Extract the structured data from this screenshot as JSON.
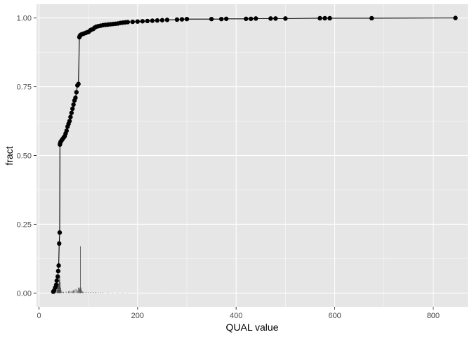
{
  "chart_data": {
    "type": "line",
    "xlabel": "QUAL value",
    "ylabel": "fract",
    "xlim": [
      -5,
      870
    ],
    "ylim": [
      -0.05,
      1.05
    ],
    "x_ticks": [
      0,
      200,
      400,
      600,
      800
    ],
    "y_ticks": [
      0.0,
      0.25,
      0.5,
      0.75,
      1.0
    ],
    "x_tick_labels": [
      "0",
      "200",
      "400",
      "600",
      "800"
    ],
    "y_tick_labels": [
      "0.00",
      "0.25",
      "0.50",
      "0.75",
      "1.00"
    ],
    "grid": true,
    "colors": {
      "panel_background": "#e6e6e6",
      "grid_major": "#ffffff",
      "line": "#000000",
      "point": "#000000",
      "histogram": "#444444",
      "tick_label": "#4d4d4d"
    },
    "ecdf_series": {
      "x": [
        29,
        31,
        33,
        35,
        36,
        38,
        39,
        40,
        41,
        42,
        42.5,
        43,
        44,
        46,
        48,
        50,
        52,
        54,
        56,
        58,
        60,
        62,
        64,
        66,
        68,
        70,
        72,
        74,
        76,
        78,
        80,
        82,
        83,
        84,
        84.5,
        86,
        89,
        92,
        95,
        98,
        101,
        104,
        107,
        110,
        113,
        116,
        120,
        125,
        130,
        135,
        140,
        145,
        150,
        155,
        160,
        165,
        170,
        175,
        180,
        190,
        200,
        210,
        220,
        230,
        240,
        250,
        260,
        280,
        290,
        300,
        350,
        370,
        380,
        420,
        430,
        440,
        470,
        480,
        500,
        570,
        580,
        590,
        675,
        845
      ],
      "y": [
        0.005,
        0.01,
        0.02,
        0.03,
        0.045,
        0.06,
        0.08,
        0.1,
        0.18,
        0.22,
        0.54,
        0.545,
        0.55,
        0.555,
        0.56,
        0.565,
        0.57,
        0.58,
        0.59,
        0.605,
        0.615,
        0.625,
        0.64,
        0.655,
        0.67,
        0.685,
        0.7,
        0.71,
        0.73,
        0.755,
        0.76,
        0.93,
        0.935,
        0.937,
        0.938,
        0.94,
        0.942,
        0.944,
        0.946,
        0.948,
        0.95,
        0.955,
        0.958,
        0.96,
        0.965,
        0.968,
        0.97,
        0.972,
        0.974,
        0.975,
        0.976,
        0.977,
        0.978,
        0.979,
        0.98,
        0.982,
        0.983,
        0.984,
        0.985,
        0.986,
        0.987,
        0.988,
        0.989,
        0.99,
        0.991,
        0.992,
        0.993,
        0.994,
        0.995,
        0.996,
        0.996,
        0.996,
        0.997,
        0.997,
        0.997,
        0.998,
        0.998,
        0.998,
        0.998,
        0.999,
        0.999,
        0.999,
        0.999,
        1.0
      ]
    },
    "histogram_series": {
      "x": [
        29,
        31,
        33,
        35,
        37,
        38,
        39,
        40,
        41,
        42,
        43,
        44,
        45,
        47,
        50,
        55,
        60,
        62,
        65,
        68,
        70,
        72,
        75,
        78,
        80,
        82,
        83,
        84,
        85,
        86,
        88,
        90,
        95,
        100,
        105,
        110,
        115,
        120,
        125,
        130,
        140,
        150,
        160,
        170,
        180,
        200,
        250,
        300
      ],
      "y": [
        0.004,
        0.006,
        0.008,
        0.01,
        0.012,
        0.025,
        0.03,
        0.035,
        0.05,
        0.06,
        0.04,
        0.02,
        0.01,
        0.005,
        0.004,
        0.005,
        0.006,
        0.008,
        0.006,
        0.008,
        0.01,
        0.012,
        0.015,
        0.01,
        0.02,
        0.02,
        0.015,
        0.17,
        0.02,
        0.012,
        0.006,
        0.004,
        0.004,
        0.003,
        0.003,
        0.003,
        0.003,
        0.002,
        0.002,
        0.002,
        0.002,
        0.001,
        0.001,
        0.001,
        0.001,
        0.0005,
        0.0005,
        0.0005
      ]
    }
  }
}
